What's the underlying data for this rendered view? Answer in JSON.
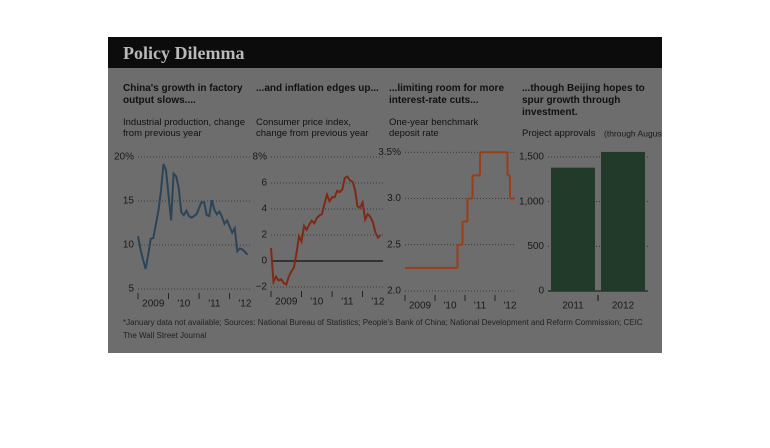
{
  "header": {
    "title": "Policy Dilemma"
  },
  "chart_data": [
    {
      "type": "line",
      "title": "China's growth in factory output slows....",
      "subtitle": "Industrial production, change from previous year",
      "color": "#2c4458",
      "grid": true,
      "x": [
        0,
        1,
        2,
        3,
        4,
        5,
        6,
        7,
        8,
        9,
        10,
        11,
        13,
        14,
        15,
        16,
        17,
        18,
        19,
        20,
        21,
        22,
        23,
        25,
        26,
        27,
        28,
        29,
        30,
        31,
        32,
        33,
        34,
        35,
        37,
        38,
        39,
        40,
        41,
        42,
        43
      ],
      "values": [
        11,
        9.5,
        8.3,
        7.3,
        8.9,
        10.7,
        10.8,
        12.3,
        13.9,
        16.1,
        19.2,
        18.5,
        12.8,
        18.1,
        17.8,
        16.5,
        13.7,
        13.4,
        13.9,
        13.3,
        13.1,
        13.3,
        13.5,
        14.9,
        14.8,
        13.4,
        13.3,
        15.1,
        14.0,
        13.5,
        13.8,
        13.2,
        12.4,
        12.8,
        11.4,
        11.9,
        9.3,
        9.6,
        9.5,
        9.2,
        8.9
      ],
      "xlim": [
        0,
        44
      ],
      "xticks": [
        {
          "value": 0,
          "label": "2009"
        },
        {
          "value": 12,
          "label": "'10"
        },
        {
          "value": 24,
          "label": "'11"
        },
        {
          "value": 36,
          "label": "'12"
        }
      ],
      "ylim": [
        5,
        20
      ],
      "yticks": [
        5,
        10,
        15,
        {
          "value": 20,
          "label": "20%"
        }
      ]
    },
    {
      "type": "line",
      "title": "...and inflation edges up...",
      "subtitle": "Consumer price index, change from previous year",
      "color": "#7e2a17",
      "grid": true,
      "values": [
        1.0,
        -1.6,
        -1.2,
        -1.5,
        -1.4,
        -1.7,
        -1.8,
        -1.2,
        -0.8,
        -0.5,
        0.6,
        1.9,
        1.5,
        2.7,
        2.4,
        2.8,
        3.1,
        2.9,
        3.3,
        3.5,
        3.6,
        4.4,
        5.1,
        4.6,
        4.9,
        4.9,
        5.4,
        5.3,
        5.5,
        6.4,
        6.5,
        6.2,
        6.1,
        5.5,
        4.2,
        4.1,
        4.5,
        3.2,
        3.6,
        3.4,
        3.0,
        2.2,
        1.8,
        2.0
      ],
      "xlim": [
        0,
        44
      ],
      "xticks": [
        {
          "value": 0,
          "label": "2009"
        },
        {
          "value": 12,
          "label": "'10"
        },
        {
          "value": 24,
          "label": "'11"
        },
        {
          "value": 36,
          "label": "'12"
        }
      ],
      "ylim": [
        -2,
        8
      ],
      "yticks": [
        {
          "value": -2,
          "label": "−2"
        },
        0,
        2,
        4,
        6,
        {
          "value": 8,
          "label": "8%"
        }
      ]
    },
    {
      "type": "step",
      "title": "...limiting room for more interest-rate cuts...",
      "subtitle": "One-year benchmark deposit rate",
      "color": "#9a3d18",
      "grid": true,
      "x": [
        0,
        21,
        23,
        25,
        27,
        30,
        41,
        42,
        44
      ],
      "values": [
        2.25,
        2.5,
        2.75,
        3.0,
        3.25,
        3.5,
        3.25,
        3.0,
        3.0
      ],
      "xlim": [
        0,
        44
      ],
      "xticks": [
        {
          "value": 0,
          "label": "2009"
        },
        {
          "value": 12,
          "label": "'10"
        },
        {
          "value": 24,
          "label": "'11"
        },
        {
          "value": 36,
          "label": "'12"
        }
      ],
      "ylim": [
        2.0,
        3.6
      ],
      "yticks": [
        {
          "value": 2.0,
          "label": "2.0"
        },
        2.5,
        {
          "value": 3.0,
          "label": "3.0"
        },
        {
          "value": 3.5,
          "label": "3.5%"
        }
      ]
    },
    {
      "type": "bar",
      "title": "...though Beijing hopes to spur growth through investment.",
      "subtitle": "Project approvals",
      "color": "#223a29",
      "grid": true,
      "annotation": "(through August)",
      "categories": [
        "2011",
        "2012"
      ],
      "values": [
        1380,
        1556
      ],
      "ylim": [
        0,
        1600
      ],
      "yticks": [
        0,
        500,
        {
          "value": 1000,
          "label": "1,000"
        },
        {
          "value": 1500,
          "label": "1,500"
        }
      ]
    }
  ],
  "footnote": "*January data not available; Sources: National Bureau of Statistics; People's Bank of China; National Development and Reform Commission; CEIC",
  "credit": "The Wall Street Journal"
}
